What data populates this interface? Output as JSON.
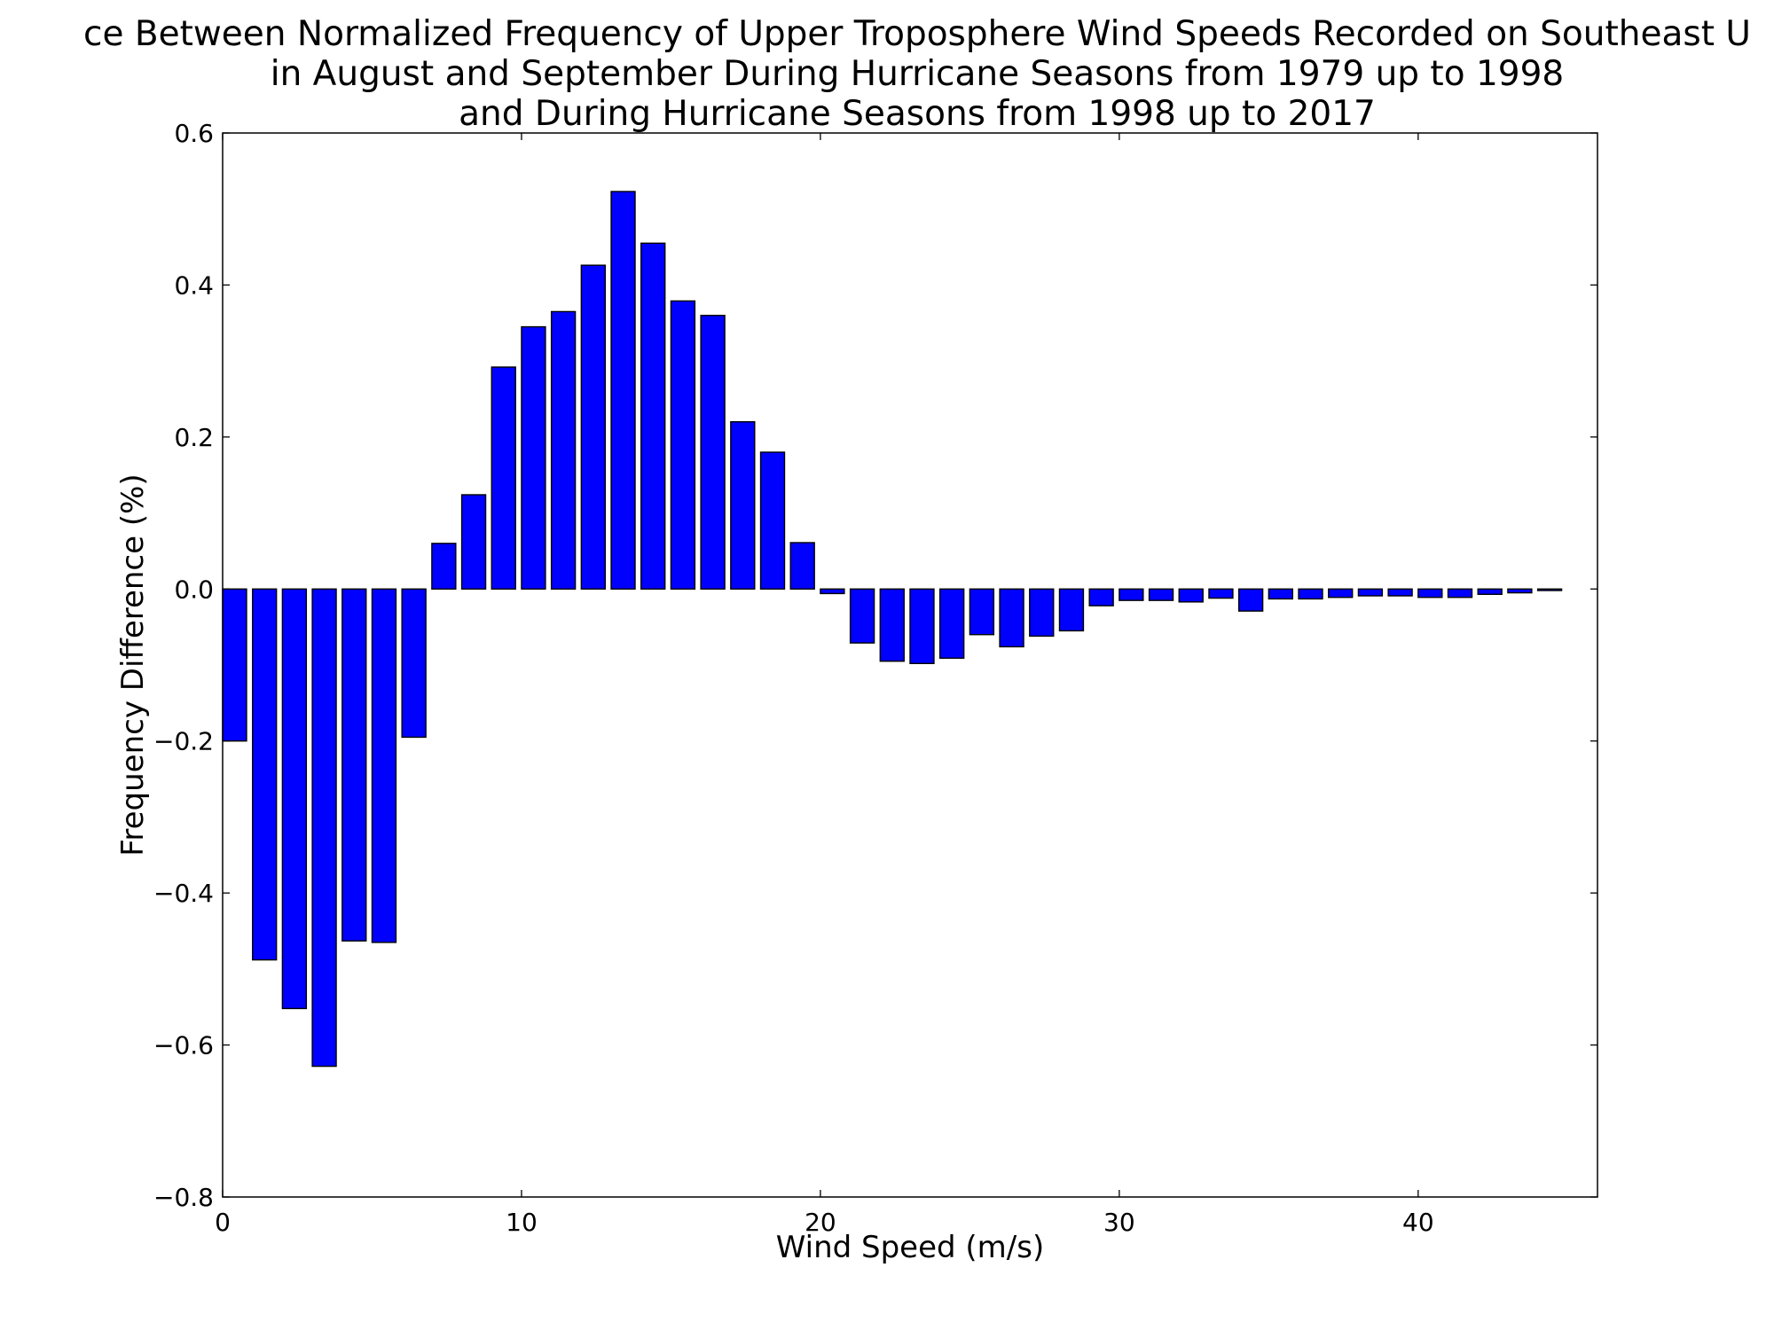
{
  "chart_data": {
    "type": "bar",
    "title_lines": [
      "ce Between Normalized Frequency of Upper Troposphere Wind Speeds Recorded on Southeast U",
      "in August and September During Hurricane Seasons from 1979 up to 1998",
      "and During Hurricane Seasons from 1998 up to 2017"
    ],
    "xlabel": "Wind Speed (m/s)",
    "ylabel": "Frequency Difference (%)",
    "xlim": [
      0,
      46
    ],
    "ylim": [
      -0.8,
      0.6
    ],
    "xticks": [
      0,
      10,
      20,
      30,
      40
    ],
    "yticks": [
      -0.8,
      -0.6,
      -0.4,
      -0.2,
      0.0,
      0.2,
      0.4,
      0.6
    ],
    "xtick_labels": [
      "0",
      "10",
      "20",
      "30",
      "40"
    ],
    "ytick_labels": [
      "−0.8",
      "−0.6",
      "−0.4",
      "−0.2",
      "0.0",
      "0.2",
      "0.4",
      "0.6"
    ],
    "bar_width": 0.8,
    "x": [
      0,
      1,
      2,
      3,
      4,
      5,
      6,
      7,
      8,
      9,
      10,
      11,
      12,
      13,
      14,
      15,
      16,
      17,
      18,
      19,
      20,
      21,
      22,
      23,
      24,
      25,
      26,
      27,
      28,
      29,
      30,
      31,
      32,
      33,
      34,
      35,
      36,
      37,
      38,
      39,
      40,
      41,
      42,
      43,
      44
    ],
    "values": [
      -0.2,
      -0.488,
      -0.552,
      -0.628,
      -0.463,
      -0.465,
      -0.195,
      0.06,
      0.124,
      0.292,
      0.345,
      0.365,
      0.426,
      0.523,
      0.455,
      0.379,
      0.36,
      0.22,
      0.18,
      0.061,
      -0.006,
      -0.071,
      -0.095,
      -0.098,
      -0.091,
      -0.06,
      -0.076,
      -0.062,
      -0.055,
      -0.022,
      -0.015,
      -0.015,
      -0.017,
      -0.012,
      -0.029,
      -0.013,
      -0.013,
      -0.011,
      -0.009,
      -0.009,
      -0.011,
      -0.011,
      -0.007,
      -0.005,
      -0.002
    ],
    "bar_color": "#0000ff",
    "edge_color": "#000000",
    "grid": false,
    "legend": "none"
  }
}
